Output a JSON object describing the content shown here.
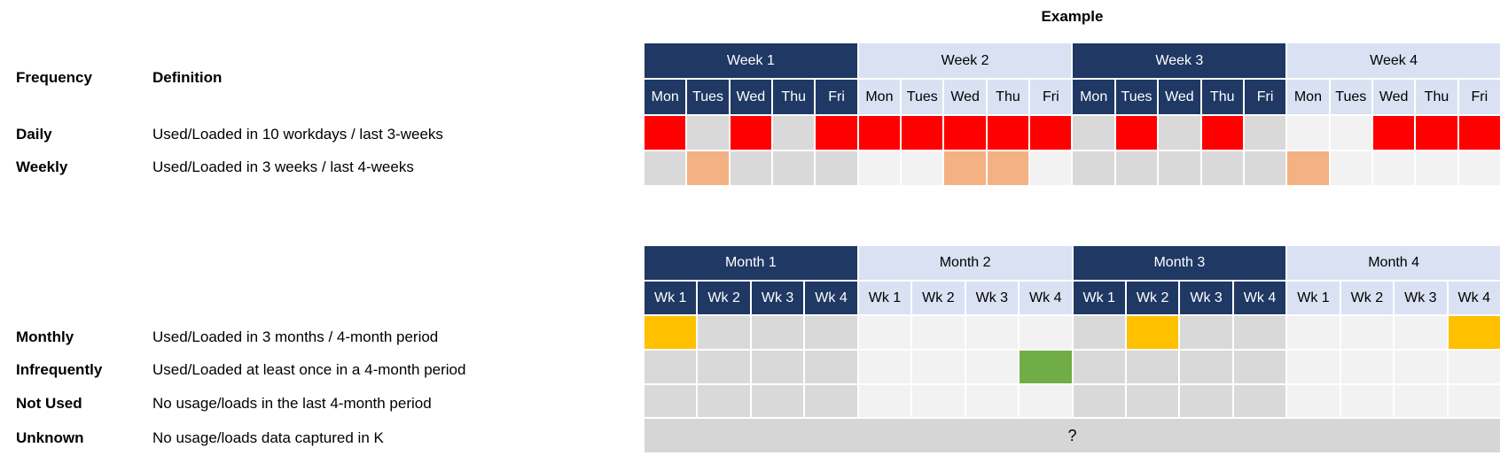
{
  "example": {
    "title": "Example"
  },
  "colors": {
    "navy": "#1F3864",
    "header_light": "#D9E1F2",
    "red": "#FF0000",
    "orange": "#F4B183",
    "yellow": "#FFC000",
    "green": "#70AD47",
    "gray": "#D9D9D9",
    "light": "#F2F2F2",
    "unknown_bar": "#D6D6D6",
    "header_dark_text": "#FFFFFF",
    "header_light_text": "#000000"
  },
  "legend": {
    "frequency_header": "Frequency",
    "definition_header": "Definition",
    "rows": [
      {
        "label": "Daily",
        "definition": "Used/Loaded in 10 workdays / last 3-weeks"
      },
      {
        "label": "Weekly",
        "definition": "Used/Loaded in 3 weeks / last 4-weeks"
      },
      {
        "label": "Monthly",
        "definition": "Used/Loaded in 3 months / 4-month period"
      },
      {
        "label": "Infrequently",
        "definition": "Used/Loaded at least once in a 4-month period"
      },
      {
        "label": "Not Used",
        "definition": "No usage/loads in the last 4-month period"
      },
      {
        "label": "Unknown",
        "definition": "No usage/loads data captured in K"
      }
    ]
  },
  "week_table": {
    "groups": [
      {
        "label": "Week 1",
        "variant": "dark"
      },
      {
        "label": "Week 2",
        "variant": "light"
      },
      {
        "label": "Week 3",
        "variant": "dark"
      },
      {
        "label": "Week 4",
        "variant": "light"
      }
    ],
    "day_labels": [
      "Mon",
      "Tues",
      "Wed",
      "Thu",
      "Fri"
    ],
    "daily": [
      [
        "red",
        "gray",
        "red",
        "gray",
        "red"
      ],
      [
        "red",
        "red",
        "red",
        "red",
        "red"
      ],
      [
        "gray",
        "red",
        "gray",
        "red",
        "gray"
      ],
      [
        "light",
        "light",
        "red",
        "red",
        "red"
      ]
    ],
    "weekly": [
      [
        "gray",
        "orange",
        "gray",
        "gray",
        "gray"
      ],
      [
        "light",
        "light",
        "orange",
        "orange",
        "light"
      ],
      [
        "gray",
        "gray",
        "gray",
        "gray",
        "gray"
      ],
      [
        "orange",
        "light",
        "light",
        "light",
        "light"
      ]
    ]
  },
  "month_table": {
    "groups": [
      {
        "label": "Month 1",
        "variant": "dark"
      },
      {
        "label": "Month 2",
        "variant": "light"
      },
      {
        "label": "Month 3",
        "variant": "dark"
      },
      {
        "label": "Month 4",
        "variant": "light"
      }
    ],
    "week_labels": [
      "Wk 1",
      "Wk 2",
      "Wk 3",
      "Wk 4"
    ],
    "monthly": [
      [
        "yellow",
        "gray",
        "gray",
        "gray"
      ],
      [
        "light",
        "light",
        "light",
        "light"
      ],
      [
        "gray",
        "yellow",
        "gray",
        "gray"
      ],
      [
        "light",
        "light",
        "light",
        "yellow"
      ]
    ],
    "infrequently": [
      [
        "gray",
        "gray",
        "gray",
        "gray"
      ],
      [
        "light",
        "light",
        "light",
        "green"
      ],
      [
        "gray",
        "gray",
        "gray",
        "gray"
      ],
      [
        "light",
        "light",
        "light",
        "light"
      ]
    ],
    "not_used": [
      [
        "gray",
        "gray",
        "gray",
        "gray"
      ],
      [
        "light",
        "light",
        "light",
        "light"
      ],
      [
        "gray",
        "gray",
        "gray",
        "gray"
      ],
      [
        "light",
        "light",
        "light",
        "light"
      ]
    ],
    "unknown_label": "?"
  }
}
